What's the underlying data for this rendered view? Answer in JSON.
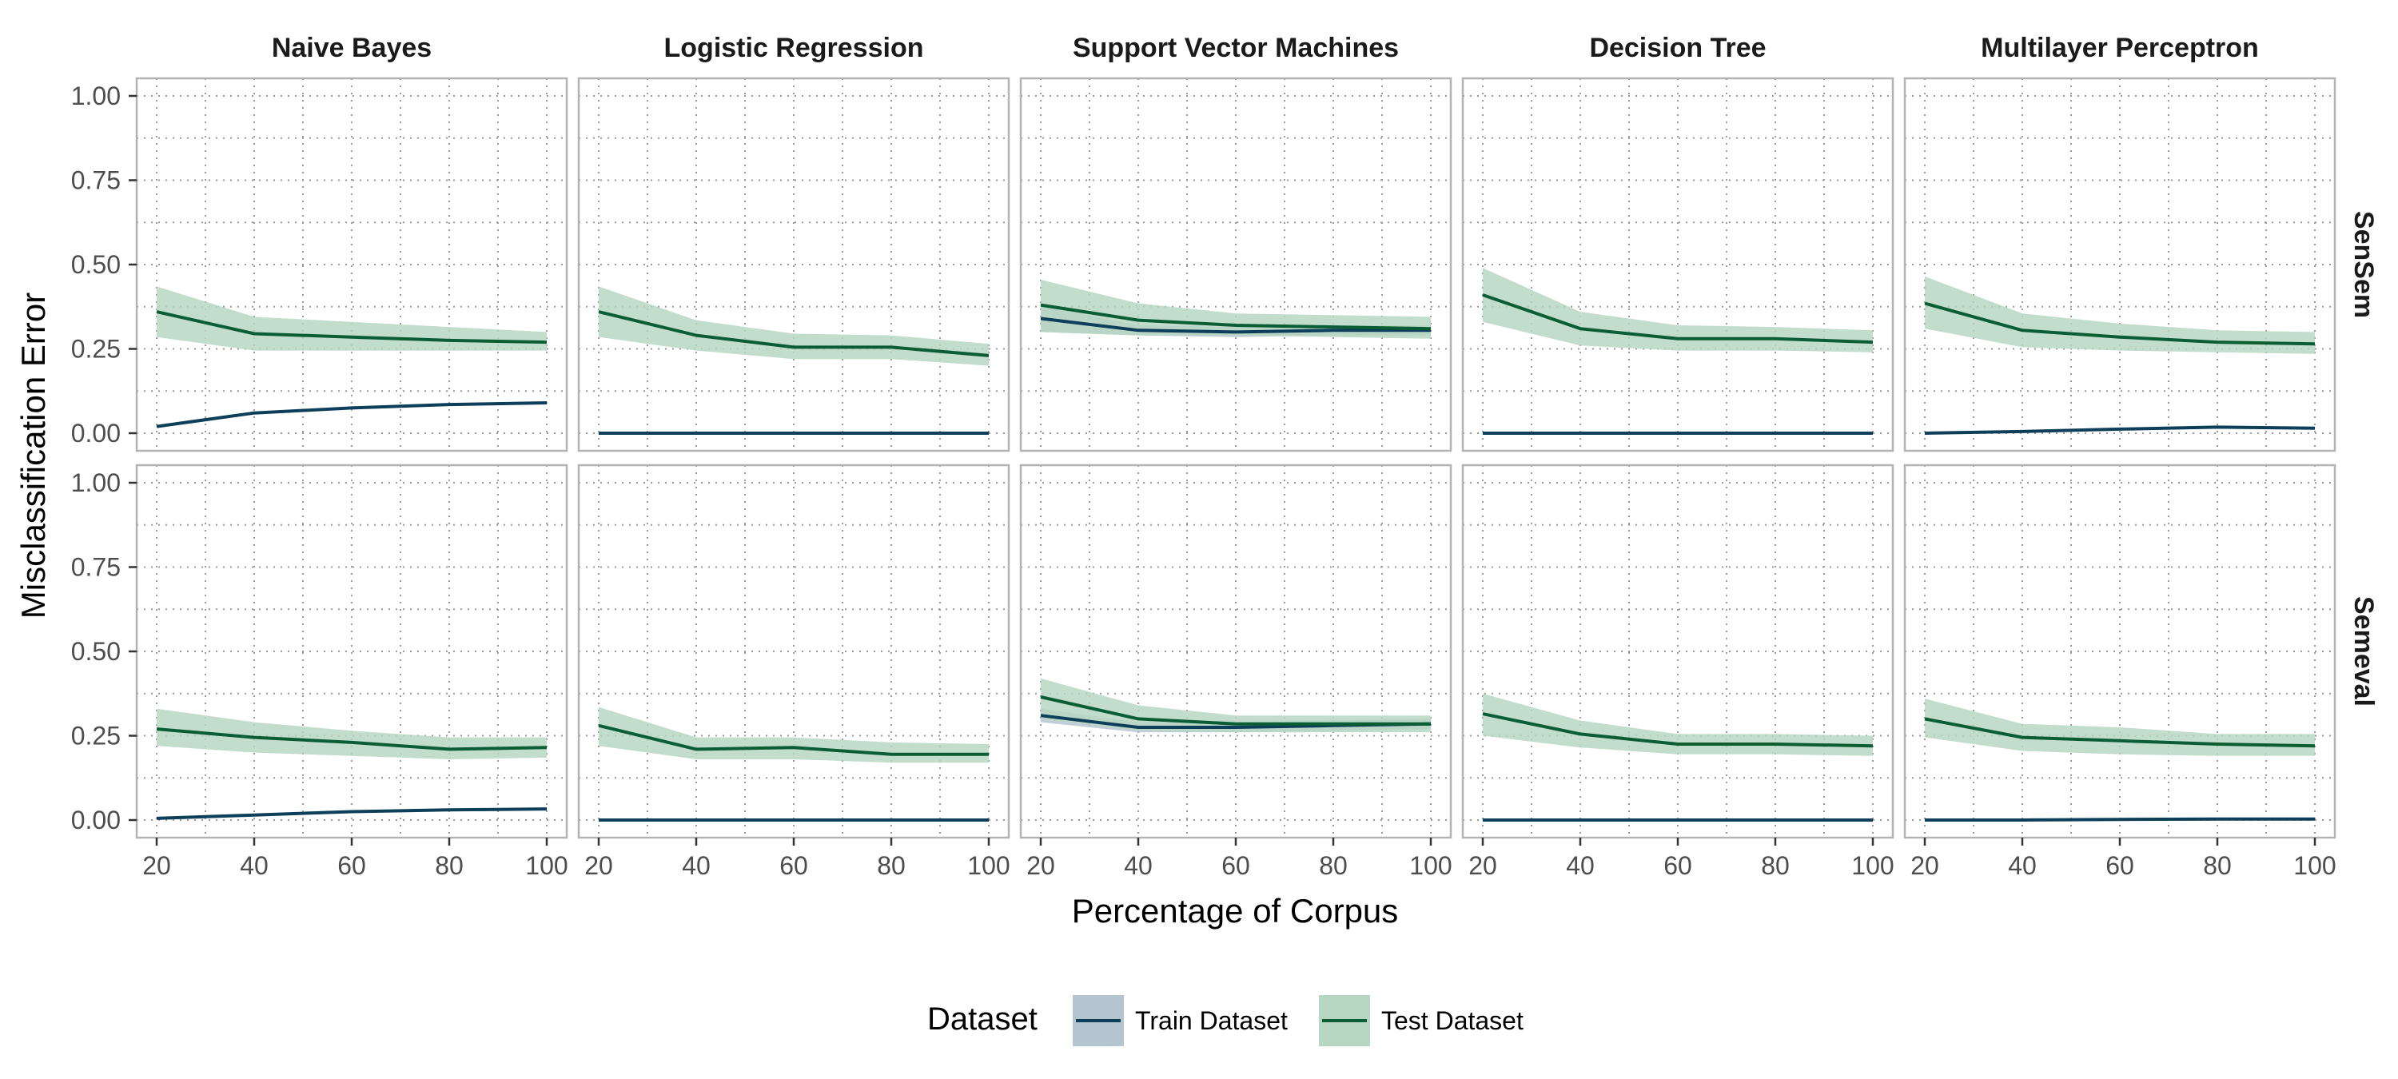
{
  "chart_data": {
    "type": "line",
    "facet_columns": [
      "Naive Bayes",
      "Logistic Regression",
      "Support Vector Machines",
      "Decision Tree",
      "Multilayer Perceptron"
    ],
    "facet_rows": [
      "SenSem",
      "Semeval"
    ],
    "xlabel": "Percentage of Corpus",
    "ylabel": "Misclassification Error",
    "x": [
      20,
      40,
      60,
      80,
      100
    ],
    "xlim": [
      20,
      100
    ],
    "ylim": [
      0,
      1
    ],
    "x_ticks": [
      "20",
      "40",
      "60",
      "80",
      "100"
    ],
    "y_ticks": [
      "0.00",
      "0.25",
      "0.50",
      "0.75",
      "1.00"
    ],
    "grid": true,
    "grid_style": "dotted",
    "legend": {
      "title": "Dataset",
      "position": "bottom",
      "entries": [
        {
          "label": "Train Dataset",
          "color": "#0d3e5a",
          "fill": "#b4c5d0"
        },
        {
          "label": "Test Dataset",
          "color": "#0b5e33",
          "fill": "#b6d6c2"
        }
      ]
    },
    "panels": [
      {
        "row": "SenSem",
        "col": "Naive Bayes",
        "series": [
          {
            "name": "Train Dataset",
            "values": [
              0.02,
              0.06,
              0.075,
              0.085,
              0.09
            ],
            "lower": [
              0.02,
              0.06,
              0.075,
              0.085,
              0.09
            ],
            "upper": [
              0.02,
              0.06,
              0.075,
              0.085,
              0.09
            ]
          },
          {
            "name": "Test Dataset",
            "values": [
              0.36,
              0.295,
              0.285,
              0.275,
              0.27
            ],
            "lower": [
              0.285,
              0.245,
              0.245,
              0.245,
              0.245
            ],
            "upper": [
              0.435,
              0.345,
              0.33,
              0.315,
              0.3
            ]
          }
        ]
      },
      {
        "row": "SenSem",
        "col": "Logistic Regression",
        "series": [
          {
            "name": "Train Dataset",
            "values": [
              0,
              0,
              0,
              0,
              0
            ],
            "lower": [
              0,
              0,
              0,
              0,
              0
            ],
            "upper": [
              0,
              0,
              0,
              0,
              0
            ]
          },
          {
            "name": "Test Dataset",
            "values": [
              0.36,
              0.29,
              0.255,
              0.255,
              0.23
            ],
            "lower": [
              0.285,
              0.245,
              0.22,
              0.22,
              0.2
            ],
            "upper": [
              0.435,
              0.335,
              0.295,
              0.29,
              0.265
            ]
          }
        ]
      },
      {
        "row": "SenSem",
        "col": "Support Vector Machines",
        "series": [
          {
            "name": "Train Dataset",
            "values": [
              0.34,
              0.305,
              0.3,
              0.305,
              0.305
            ],
            "lower": [
              0.3,
              0.29,
              0.285,
              0.29,
              0.29
            ],
            "upper": [
              0.38,
              0.32,
              0.315,
              0.32,
              0.32
            ]
          },
          {
            "name": "Test Dataset",
            "values": [
              0.38,
              0.335,
              0.32,
              0.315,
              0.31
            ],
            "lower": [
              0.3,
              0.29,
              0.29,
              0.285,
              0.28
            ],
            "upper": [
              0.455,
              0.385,
              0.355,
              0.35,
              0.345
            ]
          }
        ]
      },
      {
        "row": "SenSem",
        "col": "Decision Tree",
        "series": [
          {
            "name": "Train Dataset",
            "values": [
              0,
              0,
              0,
              0,
              0
            ],
            "lower": [
              0,
              0,
              0,
              0,
              0
            ],
            "upper": [
              0,
              0,
              0,
              0,
              0
            ]
          },
          {
            "name": "Test Dataset",
            "values": [
              0.41,
              0.31,
              0.28,
              0.28,
              0.27
            ],
            "lower": [
              0.33,
              0.26,
              0.245,
              0.245,
              0.24
            ],
            "upper": [
              0.49,
              0.36,
              0.32,
              0.315,
              0.305
            ]
          }
        ]
      },
      {
        "row": "SenSem",
        "col": "Multilayer Perceptron",
        "series": [
          {
            "name": "Train Dataset",
            "values": [
              0,
              0.005,
              0.012,
              0.018,
              0.015
            ],
            "lower": [
              0,
              0.005,
              0.012,
              0.018,
              0.015
            ],
            "upper": [
              0,
              0.005,
              0.012,
              0.018,
              0.015
            ]
          },
          {
            "name": "Test Dataset",
            "values": [
              0.385,
              0.305,
              0.285,
              0.27,
              0.265
            ],
            "lower": [
              0.31,
              0.255,
              0.245,
              0.24,
              0.235
            ],
            "upper": [
              0.465,
              0.355,
              0.325,
              0.305,
              0.3
            ]
          }
        ]
      },
      {
        "row": "Semeval",
        "col": "Naive Bayes",
        "series": [
          {
            "name": "Train Dataset",
            "values": [
              0.005,
              0.015,
              0.025,
              0.03,
              0.033
            ],
            "lower": [
              0.005,
              0.015,
              0.025,
              0.03,
              0.033
            ],
            "upper": [
              0.005,
              0.015,
              0.025,
              0.03,
              0.033
            ]
          },
          {
            "name": "Test Dataset",
            "values": [
              0.27,
              0.245,
              0.23,
              0.21,
              0.215
            ],
            "lower": [
              0.22,
              0.2,
              0.19,
              0.18,
              0.185
            ],
            "upper": [
              0.33,
              0.29,
              0.265,
              0.245,
              0.245
            ]
          }
        ]
      },
      {
        "row": "Semeval",
        "col": "Logistic Regression",
        "series": [
          {
            "name": "Train Dataset",
            "values": [
              0,
              0,
              0,
              0,
              0
            ],
            "lower": [
              0,
              0,
              0,
              0,
              0
            ],
            "upper": [
              0,
              0,
              0,
              0,
              0
            ]
          },
          {
            "name": "Test Dataset",
            "values": [
              0.28,
              0.21,
              0.215,
              0.195,
              0.195
            ],
            "lower": [
              0.22,
              0.18,
              0.18,
              0.17,
              0.17
            ],
            "upper": [
              0.335,
              0.245,
              0.245,
              0.23,
              0.225
            ]
          }
        ]
      },
      {
        "row": "Semeval",
        "col": "Support Vector Machines",
        "series": [
          {
            "name": "Train Dataset",
            "values": [
              0.31,
              0.275,
              0.275,
              0.28,
              0.285
            ],
            "lower": [
              0.29,
              0.26,
              0.26,
              0.265,
              0.27
            ],
            "upper": [
              0.33,
              0.29,
              0.29,
              0.295,
              0.3
            ]
          },
          {
            "name": "Test Dataset",
            "values": [
              0.365,
              0.3,
              0.285,
              0.285,
              0.285
            ],
            "lower": [
              0.3,
              0.265,
              0.26,
              0.26,
              0.26
            ],
            "upper": [
              0.42,
              0.34,
              0.31,
              0.31,
              0.31
            ]
          }
        ]
      },
      {
        "row": "Semeval",
        "col": "Decision Tree",
        "series": [
          {
            "name": "Train Dataset",
            "values": [
              0,
              0,
              0,
              0,
              0
            ],
            "lower": [
              0,
              0,
              0,
              0,
              0
            ],
            "upper": [
              0,
              0,
              0,
              0,
              0
            ]
          },
          {
            "name": "Test Dataset",
            "values": [
              0.315,
              0.255,
              0.225,
              0.225,
              0.22
            ],
            "lower": [
              0.25,
              0.215,
              0.195,
              0.195,
              0.19
            ],
            "upper": [
              0.375,
              0.295,
              0.255,
              0.255,
              0.25
            ]
          }
        ]
      },
      {
        "row": "Semeval",
        "col": "Multilayer Perceptron",
        "series": [
          {
            "name": "Train Dataset",
            "values": [
              0,
              0,
              0.002,
              0.003,
              0.003
            ],
            "lower": [
              0,
              0,
              0.002,
              0.003,
              0.003
            ],
            "upper": [
              0,
              0,
              0.002,
              0.003,
              0.003
            ]
          },
          {
            "name": "Test Dataset",
            "values": [
              0.3,
              0.245,
              0.235,
              0.225,
              0.22
            ],
            "lower": [
              0.245,
              0.205,
              0.195,
              0.19,
              0.19
            ],
            "upper": [
              0.36,
              0.285,
              0.275,
              0.255,
              0.255
            ]
          }
        ]
      }
    ]
  }
}
